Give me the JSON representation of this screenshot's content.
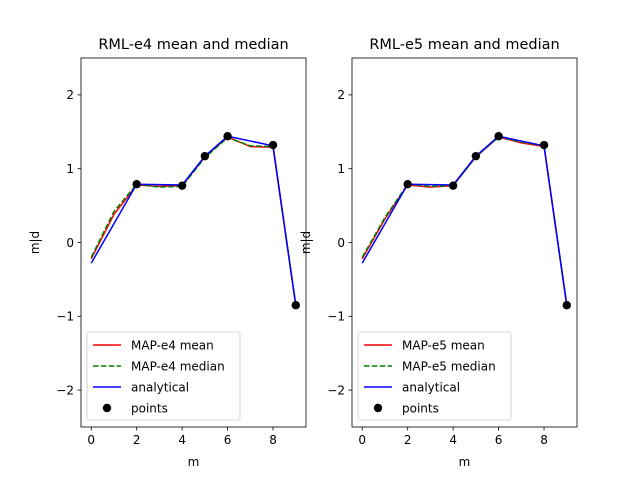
{
  "chart_data": [
    {
      "type": "line",
      "title": "RML-e4 mean and median",
      "xlabel": "m",
      "ylabel": "m|d",
      "xlim": [
        -0.45,
        9.45
      ],
      "ylim": [
        -2.5,
        2.5
      ],
      "xticks": [
        0,
        2,
        4,
        6,
        8
      ],
      "yticks": [
        -2,
        -1,
        0,
        1,
        2
      ],
      "xtick_labels": [
        "0",
        "2",
        "4",
        "6",
        "8"
      ],
      "ytick_labels": [
        "−2",
        "−1",
        "0",
        "1",
        "2"
      ],
      "grid": false,
      "legend_position": "lower-left",
      "series": [
        {
          "name": "MAP-e4 mean",
          "style": "solid",
          "color": "#ff0000",
          "x": [
            0,
            1,
            2,
            3,
            4,
            5,
            6,
            7,
            8,
            9
          ],
          "y": [
            -0.22,
            0.38,
            0.78,
            0.76,
            0.77,
            1.16,
            1.43,
            1.3,
            1.29,
            -0.85
          ]
        },
        {
          "name": "MAP-e4 median",
          "style": "dashed",
          "color": "#008000",
          "x": [
            0,
            1,
            2,
            3,
            4,
            5,
            6,
            7,
            8,
            9
          ],
          "y": [
            -0.2,
            0.42,
            0.79,
            0.75,
            0.76,
            1.15,
            1.42,
            1.31,
            1.3,
            -0.84
          ]
        },
        {
          "name": "analytical",
          "style": "solid",
          "color": "#0000ff",
          "x": [
            0,
            2,
            4,
            5,
            6,
            8,
            9
          ],
          "y": [
            -0.28,
            0.79,
            0.78,
            1.17,
            1.44,
            1.31,
            -0.85
          ]
        },
        {
          "name": "points",
          "style": "markers",
          "color": "#000000",
          "x": [
            2,
            4,
            5,
            6,
            8,
            9
          ],
          "y": [
            0.79,
            0.77,
            1.17,
            1.44,
            1.32,
            -0.85
          ]
        }
      ]
    },
    {
      "type": "line",
      "title": "RML-e5 mean and median",
      "xlabel": "m",
      "ylabel": "m|d",
      "xlim": [
        -0.45,
        9.45
      ],
      "ylim": [
        -2.5,
        2.5
      ],
      "xticks": [
        0,
        2,
        4,
        6,
        8
      ],
      "yticks": [
        -2,
        -1,
        0,
        1,
        2
      ],
      "xtick_labels": [
        "0",
        "2",
        "4",
        "6",
        "8"
      ],
      "ytick_labels": [
        "−2",
        "−1",
        "0",
        "1",
        "2"
      ],
      "grid": false,
      "legend_position": "lower-left",
      "series": [
        {
          "name": "MAP-e5 mean",
          "style": "solid",
          "color": "#ff0000",
          "x": [
            0,
            1,
            2,
            3,
            4,
            5,
            6,
            7,
            8,
            9
          ],
          "y": [
            -0.22,
            0.32,
            0.78,
            0.75,
            0.77,
            1.16,
            1.43,
            1.35,
            1.3,
            -0.85
          ]
        },
        {
          "name": "MAP-e5 median",
          "style": "dashed",
          "color": "#008000",
          "x": [
            0,
            1,
            2,
            3,
            4,
            5,
            6,
            7,
            8,
            9
          ],
          "y": [
            -0.2,
            0.34,
            0.79,
            0.76,
            0.77,
            1.16,
            1.43,
            1.36,
            1.31,
            -0.84
          ]
        },
        {
          "name": "analytical",
          "style": "solid",
          "color": "#0000ff",
          "x": [
            0,
            2,
            4,
            5,
            6,
            8,
            9
          ],
          "y": [
            -0.28,
            0.79,
            0.78,
            1.17,
            1.44,
            1.31,
            -0.85
          ]
        },
        {
          "name": "points",
          "style": "markers",
          "color": "#000000",
          "x": [
            2,
            4,
            5,
            6,
            8,
            9
          ],
          "y": [
            0.79,
            0.77,
            1.17,
            1.44,
            1.32,
            -0.85
          ]
        }
      ]
    }
  ]
}
